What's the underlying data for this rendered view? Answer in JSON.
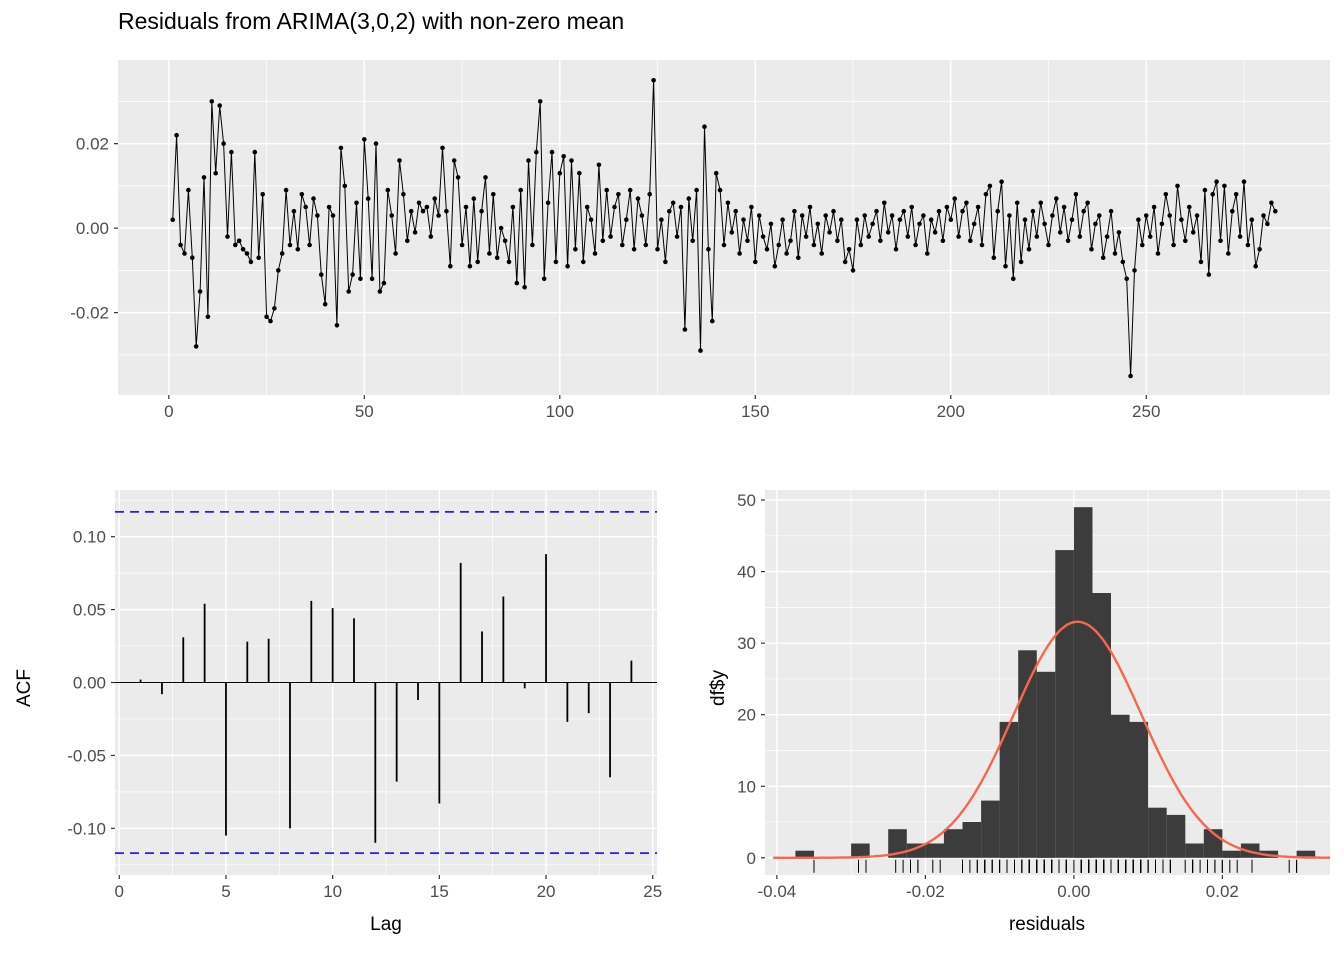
{
  "title": "Residuals from ARIMA(3,0,2) with non-zero mean",
  "colors": {
    "panel_bg": "#EBEBEB",
    "gridline": "#FFFFFF",
    "series": "#000000",
    "conf": "#2222EE",
    "hist_fill": "#3C3C3C",
    "curve": "#F8664E",
    "tick_text": "#4D4D4D",
    "tick_mark": "#333333"
  },
  "chart_data": [
    {
      "name": "residuals-time-series",
      "type": "line",
      "title": "Residuals from ARIMA(3,0,2) with non-zero mean",
      "xlabel": "",
      "ylabel": "",
      "x_start": 1,
      "xlim": [
        -13,
        297
      ],
      "ylim": [
        -0.0395,
        0.0398
      ],
      "x_ticks": [
        0,
        50,
        100,
        150,
        200,
        250
      ],
      "x_tick_labels": [
        "0",
        "50",
        "100",
        "150",
        "200",
        "250"
      ],
      "y_ticks": [
        -0.02,
        0,
        0.02
      ],
      "y_tick_labels": [
        "-0.02",
        "0.00",
        "0.02"
      ],
      "y": [
        0.002,
        0.022,
        -0.004,
        -0.006,
        0.009,
        -0.007,
        -0.028,
        -0.015,
        0.012,
        -0.021,
        0.03,
        0.013,
        0.029,
        0.02,
        -0.002,
        0.018,
        -0.004,
        -0.003,
        -0.005,
        -0.006,
        -0.008,
        0.018,
        -0.007,
        0.008,
        -0.021,
        -0.022,
        -0.019,
        -0.01,
        -0.006,
        0.009,
        -0.004,
        0.004,
        -0.005,
        0.008,
        0.005,
        -0.004,
        0.007,
        0.003,
        -0.011,
        -0.018,
        0.005,
        0.003,
        -0.023,
        0.019,
        0.01,
        -0.015,
        -0.011,
        0.006,
        -0.012,
        0.021,
        0.007,
        -0.012,
        0.02,
        -0.015,
        -0.013,
        0.009,
        0.003,
        -0.006,
        0.016,
        0.008,
        -0.003,
        0.004,
        -0.001,
        0.006,
        0.004,
        0.005,
        -0.002,
        0.007,
        0.003,
        0.019,
        0.004,
        -0.009,
        0.016,
        0.012,
        -0.004,
        0.005,
        -0.009,
        0.007,
        -0.008,
        0.004,
        0.012,
        -0.006,
        0.008,
        -0.007,
        0.0,
        -0.003,
        -0.008,
        0.005,
        -0.013,
        0.009,
        -0.014,
        0.016,
        -0.004,
        0.018,
        0.03,
        -0.012,
        0.006,
        0.018,
        -0.008,
        0.013,
        0.017,
        -0.009,
        0.016,
        -0.005,
        0.013,
        -0.008,
        0.005,
        0.002,
        -0.006,
        0.015,
        -0.003,
        0.009,
        -0.002,
        0.005,
        0.008,
        -0.004,
        0.002,
        0.009,
        -0.005,
        0.007,
        0.003,
        -0.004,
        0.008,
        0.035,
        -0.005,
        0.002,
        -0.008,
        0.004,
        0.006,
        -0.002,
        0.005,
        -0.024,
        0.007,
        -0.003,
        0.009,
        -0.029,
        0.024,
        -0.005,
        -0.022,
        0.013,
        0.009,
        -0.004,
        0.006,
        -0.001,
        0.004,
        -0.006,
        0.002,
        -0.003,
        0.005,
        -0.008,
        0.003,
        -0.002,
        -0.005,
        0.001,
        -0.009,
        -0.004,
        0.002,
        -0.006,
        -0.003,
        0.004,
        -0.007,
        0.003,
        -0.002,
        0.005,
        -0.004,
        0.001,
        -0.006,
        0.003,
        -0.001,
        0.004,
        -0.003,
        0.002,
        -0.008,
        -0.005,
        -0.01,
        0.002,
        -0.004,
        0.003,
        -0.002,
        0.001,
        0.004,
        -0.003,
        0.006,
        -0.001,
        0.003,
        -0.005,
        0.002,
        0.004,
        -0.002,
        0.005,
        -0.004,
        0.001,
        0.003,
        -0.006,
        0.002,
        -0.001,
        0.004,
        -0.003,
        0.005,
        0.002,
        0.007,
        -0.002,
        0.004,
        0.006,
        -0.003,
        0.001,
        0.005,
        -0.004,
        0.008,
        0.01,
        -0.007,
        0.004,
        0.011,
        -0.009,
        0.003,
        -0.012,
        0.006,
        -0.008,
        0.002,
        -0.005,
        0.004,
        -0.002,
        0.006,
        0.001,
        -0.004,
        0.003,
        0.007,
        -0.001,
        0.005,
        -0.003,
        0.002,
        0.008,
        -0.002,
        0.004,
        0.006,
        -0.005,
        0.001,
        0.003,
        -0.007,
        -0.002,
        0.004,
        -0.006,
        -0.001,
        -0.008,
        -0.012,
        -0.035,
        -0.01,
        0.002,
        -0.004,
        0.003,
        -0.002,
        0.005,
        -0.006,
        0.001,
        0.008,
        0.003,
        -0.004,
        0.01,
        0.002,
        -0.003,
        0.005,
        -0.001,
        0.003,
        -0.008,
        0.009,
        -0.011,
        0.008,
        0.011,
        -0.003,
        0.01,
        -0.006,
        0.004,
        0.008,
        -0.002,
        0.011,
        -0.004,
        0.002,
        -0.009,
        -0.005,
        0.003,
        0.001,
        0.006,
        0.004
      ]
    },
    {
      "name": "acf",
      "type": "bar",
      "xlabel": "Lag",
      "ylabel": "ACF",
      "xlim": [
        -0.2,
        25.2
      ],
      "ylim": [
        -0.132,
        0.132
      ],
      "x_ticks": [
        0,
        5,
        10,
        15,
        20,
        25
      ],
      "x_tick_labels": [
        "0",
        "5",
        "10",
        "15",
        "20",
        "25"
      ],
      "y_ticks": [
        -0.1,
        -0.05,
        0,
        0.05,
        0.1
      ],
      "y_tick_labels": [
        "-0.10",
        "-0.05",
        "0.00",
        "0.05",
        "0.10"
      ],
      "conf_bound": 0.117,
      "lags": [
        1,
        2,
        3,
        4,
        5,
        6,
        7,
        8,
        9,
        10,
        11,
        12,
        13,
        14,
        15,
        16,
        17,
        18,
        19,
        20,
        21,
        22,
        23,
        24
      ],
      "values": [
        0.002,
        -0.008,
        0.031,
        0.054,
        -0.105,
        0.028,
        0.03,
        -0.1,
        0.056,
        0.051,
        0.044,
        -0.11,
        -0.068,
        -0.012,
        -0.083,
        0.082,
        0.035,
        0.059,
        -0.004,
        0.088,
        -0.027,
        -0.021,
        -0.065,
        0.015
      ]
    },
    {
      "name": "residuals-histogram",
      "type": "histogram",
      "xlabel": "residuals",
      "ylabel": "df$y",
      "xlim": [
        -0.0416,
        0.0345
      ],
      "ylim": [
        -2.4,
        51.4
      ],
      "x_ticks": [
        -0.04,
        -0.02,
        0,
        0.02
      ],
      "x_tick_labels": [
        "-0.04",
        "-0.02",
        "0.00",
        "0.02"
      ],
      "y_ticks": [
        0,
        10,
        20,
        30,
        40,
        50
      ],
      "y_tick_labels": [
        "0",
        "10",
        "20",
        "30",
        "40",
        "50"
      ],
      "bin_start": -0.0375,
      "bin_width": 0.0025,
      "counts": [
        1,
        0,
        0,
        2,
        0,
        4,
        2,
        2,
        4,
        5,
        8,
        19,
        29,
        26,
        43,
        49,
        37,
        20,
        19,
        7,
        6,
        2,
        4,
        1,
        2,
        1,
        0,
        1
      ],
      "normal_curve": {
        "mean": 0.0005,
        "sd": 0.0086,
        "peak": 33
      }
    }
  ]
}
